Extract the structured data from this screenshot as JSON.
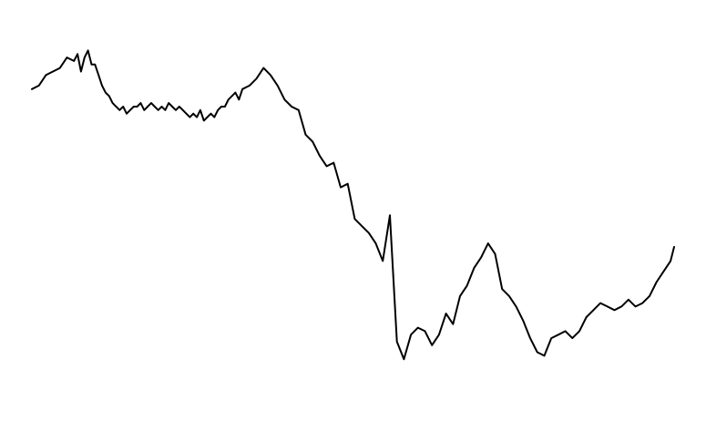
{
  "chart_data": {
    "type": "line",
    "title": "",
    "xlabel": "",
    "ylabel": "",
    "grid": false,
    "axes_visible": false,
    "legend": "none",
    "line_color": "#000000",
    "xlim": [
      0,
      366
    ],
    "ylim": [
      0,
      100
    ],
    "series": [
      {
        "x": [
          0,
          4,
          8,
          12,
          16,
          20,
          24,
          26,
          28,
          30,
          32,
          34,
          36,
          38,
          40,
          42,
          44,
          46,
          48,
          50,
          52,
          54,
          56,
          58,
          60,
          62,
          64,
          66,
          68,
          70,
          72,
          74,
          76,
          78,
          80,
          82,
          84,
          86,
          88,
          90,
          92,
          94,
          96,
          98,
          100,
          102,
          104,
          106,
          108,
          110,
          112,
          114,
          116,
          118,
          120,
          124,
          128,
          132,
          136,
          140,
          144,
          148,
          152,
          156,
          160,
          164,
          168,
          172,
          176,
          180,
          184,
          188,
          192,
          196,
          200,
          204,
          208,
          212,
          216,
          220,
          224,
          228,
          232,
          236,
          240,
          244,
          248,
          252,
          256,
          260,
          264,
          268,
          272,
          276,
          280,
          284,
          288,
          292,
          296,
          300,
          304,
          308,
          312,
          316,
          320,
          324,
          328,
          332,
          336,
          340,
          344,
          348,
          352,
          356,
          360,
          364,
          366
        ],
        "y": [
          85,
          86,
          89,
          90,
          91,
          94,
          93,
          95,
          90,
          94,
          96,
          92,
          92,
          89,
          86,
          84,
          83,
          81,
          80,
          79,
          80,
          78,
          79,
          80,
          80,
          81,
          79,
          80,
          81,
          80,
          79,
          80,
          79,
          81,
          80,
          79,
          80,
          79,
          78,
          77,
          78,
          77,
          79,
          76,
          77,
          78,
          77,
          79,
          80,
          80,
          82,
          83,
          84,
          82,
          85,
          86,
          88,
          91,
          89,
          86,
          82,
          80,
          79,
          72,
          70,
          66,
          63,
          64,
          57,
          58,
          48,
          46,
          44,
          41,
          36,
          49,
          13,
          8,
          15,
          17,
          16,
          12,
          15,
          21,
          18,
          26,
          29,
          34,
          37,
          41,
          38,
          28,
          26,
          23,
          19,
          14,
          10,
          9,
          14,
          15,
          16,
          14,
          16,
          20,
          22,
          24,
          23,
          22,
          23,
          25,
          23,
          24,
          26,
          30,
          33,
          36,
          40
        ]
      }
    ]
  }
}
